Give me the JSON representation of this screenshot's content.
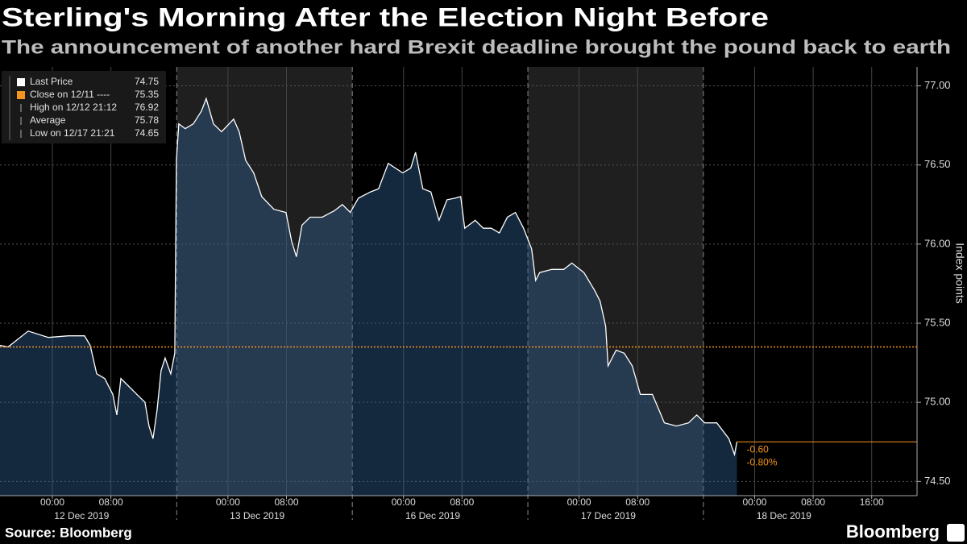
{
  "title": "Sterling's Morning After the Election Night Before",
  "subtitle": "The announcement of another hard Brexit deadline brought the pound back to earth",
  "source": "Source: Bloomberg",
  "brand": "Bloomberg",
  "chart_data": {
    "type": "area",
    "y_label": "Index points",
    "x": [
      -7.16,
      -6.06,
      -3.3,
      -0.55,
      2.2,
      4.4,
      5.17,
      6.06,
      7.16,
      8.26,
      8.81,
      9.36,
      10.46,
      11.56,
      12.66,
      13.21,
      13.76,
      14.31,
      14.86,
      15.41,
      16.18,
      16.73,
      16.95,
      17.28,
      18.17,
      19.27,
      20.37,
      21.03,
      22.02,
      23.12,
      24.77,
      25.54,
      26.42,
      27.52,
      28.62,
      30.28,
      31.93,
      32.7,
      33.36,
      34.13,
      35.23,
      36.88,
      38.53,
      39.63,
      40.73,
      41.83,
      43.49,
      44.59,
      45.91,
      47.89,
      48.99,
      49.65,
      50.64,
      51.74,
      52.85,
      53.95,
      55.05,
      55.82,
      56.37,
      57.8,
      58.9,
      60.0,
      61.1,
      62.2,
      63.3,
      64.41,
      65.51,
      66.06,
      66.61,
      68.26,
      69.91,
      71.01,
      72.66,
      74.09,
      74.86,
      75.64,
      75.97,
      77.07,
      78.17,
      79.27,
      80.37,
      82.02,
      83.67,
      85.32,
      86.97,
      88.08,
      89.18,
      90.83,
      92.48,
      93.25,
      93.58
    ],
    "series": [
      {
        "name": "Last Price",
        "color": "#ffffff",
        "last_value": 74.75,
        "values": [
          75.36,
          75.35,
          75.45,
          75.41,
          75.42,
          75.42,
          75.36,
          75.18,
          75.15,
          75.05,
          74.92,
          75.15,
          75.1,
          75.05,
          75.0,
          74.85,
          74.77,
          74.95,
          75.2,
          75.28,
          75.18,
          75.31,
          76.53,
          76.76,
          76.73,
          76.76,
          76.84,
          76.92,
          76.76,
          76.71,
          76.79,
          76.71,
          76.53,
          76.45,
          76.3,
          76.22,
          76.2,
          76.02,
          75.92,
          76.12,
          76.17,
          76.17,
          76.21,
          76.25,
          76.2,
          76.29,
          76.33,
          76.35,
          76.51,
          76.45,
          76.48,
          76.58,
          76.35,
          76.33,
          76.15,
          76.28,
          76.29,
          76.3,
          76.1,
          76.15,
          76.1,
          76.1,
          76.07,
          76.17,
          76.2,
          76.1,
          75.97,
          75.77,
          75.82,
          75.84,
          75.84,
          75.88,
          75.82,
          75.71,
          75.64,
          75.48,
          75.23,
          75.33,
          75.31,
          75.23,
          75.05,
          75.05,
          74.87,
          74.85,
          74.87,
          74.92,
          74.87,
          74.87,
          74.77,
          74.67,
          74.75
        ]
      }
    ],
    "reference_line": {
      "name": "Close on 12/11 ----",
      "value": 75.35,
      "color": "#f7941d"
    },
    "legend_stats": [
      {
        "label": "High on 12/12 21:12",
        "value": 76.92
      },
      {
        "label": "Average",
        "value": 75.78
      },
      {
        "label": "Low on 12/17 21:21",
        "value": 74.65
      }
    ],
    "change_labels": [
      "-0.60",
      "-0.80%"
    ],
    "xlim": [
      -7.16,
      118.2
    ],
    "ylim": [
      74.41,
      77.12
    ],
    "yticks": [
      {
        "value": 74.5,
        "label": "74.50"
      },
      {
        "value": 75,
        "label": "75.00"
      },
      {
        "value": 75.5,
        "label": "75.50"
      },
      {
        "value": 76,
        "label": "76.00"
      },
      {
        "value": 76.5,
        "label": "76.50"
      },
      {
        "value": 77,
        "label": "77.00"
      }
    ],
    "xticks": [
      {
        "value": 0,
        "label": "00:00"
      },
      {
        "value": 8,
        "label": "08:00"
      },
      {
        "value": 24,
        "label": "00:00"
      },
      {
        "value": 32,
        "label": "08:00"
      },
      {
        "value": 48,
        "label": "00:00"
      },
      {
        "value": 56,
        "label": "08:00"
      },
      {
        "value": 72,
        "label": "00:00"
      },
      {
        "value": 80,
        "label": "08:00"
      },
      {
        "value": 96,
        "label": "00:00"
      },
      {
        "value": 104,
        "label": "08:00"
      },
      {
        "value": 112,
        "label": "16:00"
      }
    ],
    "date_labels": [
      {
        "value": 4,
        "label": "12 Dec 2019"
      },
      {
        "value": 28,
        "label": "13 Dec 2019"
      },
      {
        "value": 52,
        "label": "16 Dec 2019"
      },
      {
        "value": 76,
        "label": "17 Dec 2019"
      },
      {
        "value": 100,
        "label": "18 Dec 2019"
      }
    ],
    "session_breaks": [
      17,
      41,
      65,
      89
    ],
    "grid": true
  }
}
